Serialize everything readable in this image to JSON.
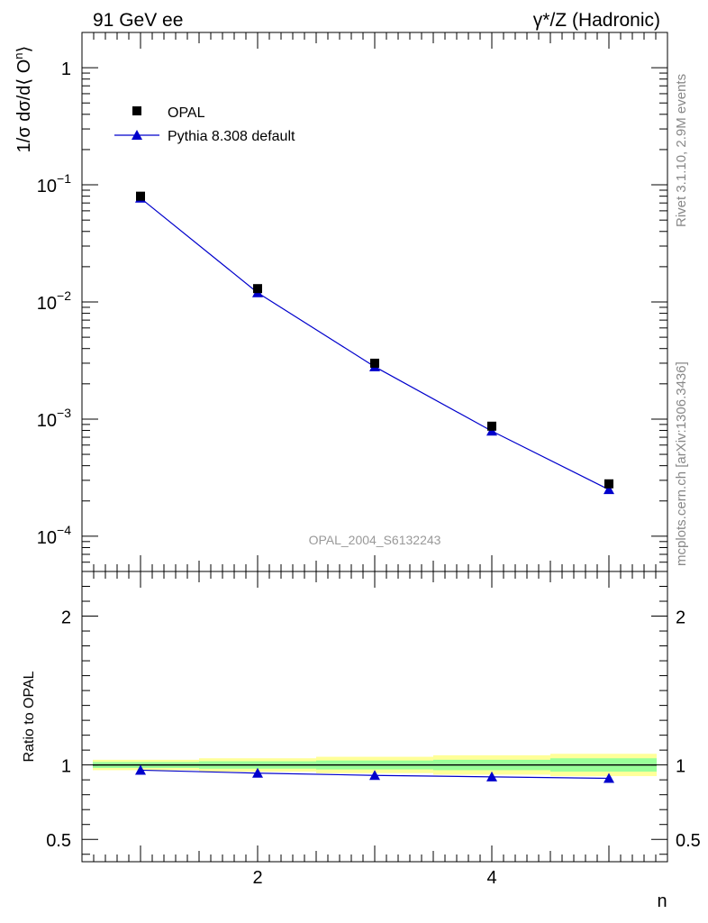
{
  "header": {
    "left": "91 GeV ee",
    "right": "γ*/Z (Hadronic)"
  },
  "side": {
    "rivet": "Rivet 3.1.10,  2.9M events",
    "mcplots": "mcplots.cern.ch [arXiv:1306.3436]"
  },
  "watermark": "OPAL_2004_S6132243",
  "colors": {
    "data": "#000000",
    "mc": "#0000cc",
    "band_inner": "#99ff99",
    "band_outer": "#ffff99"
  },
  "chart_data": [
    {
      "type": "scatter",
      "panel": "main",
      "ylabel": "1/σ dσ/d⟨ Oⁿ⟩",
      "yscale": "log",
      "ylim": [
        5e-05,
        2
      ],
      "xlim": [
        0.5,
        5.5
      ],
      "yticks": [
        {
          "value": 1,
          "base": "1",
          "exp": ""
        },
        {
          "value": 0.1,
          "base": "10",
          "exp": "−1"
        },
        {
          "value": 0.01,
          "base": "10",
          "exp": "−2"
        },
        {
          "value": 0.001,
          "base": "10",
          "exp": "−3"
        },
        {
          "value": 0.0001,
          "base": "10",
          "exp": "−4"
        }
      ],
      "legend": [
        {
          "name": "OPAL",
          "marker": "square"
        },
        {
          "name": "Pythia 8.308 default",
          "marker": "triangle"
        }
      ],
      "series": [
        {
          "name": "OPAL",
          "x": [
            1,
            2,
            3,
            4,
            5
          ],
          "values": [
            0.08,
            0.013,
            0.003,
            0.00087,
            0.00028
          ]
        },
        {
          "name": "Pythia 8.308 default",
          "x": [
            1,
            2,
            3,
            4,
            5
          ],
          "values": [
            0.077,
            0.012,
            0.0028,
            0.00079,
            0.00025
          ]
        }
      ]
    },
    {
      "type": "line",
      "panel": "ratio",
      "ylabel": "Ratio to OPAL",
      "xlabel": "n",
      "ylim": [
        0.35,
        2.3
      ],
      "xlim": [
        0.5,
        5.5
      ],
      "xticks": [
        2,
        4
      ],
      "yticks": [
        {
          "value": 2,
          "label": "2"
        },
        {
          "value": 1,
          "label": "1"
        },
        {
          "value": 0.5,
          "label": "0.5"
        }
      ],
      "bands": [
        {
          "x": [
            0.5,
            1.5
          ],
          "inner": 0.02,
          "outer": 0.035
        },
        {
          "x": [
            1.5,
            2.5
          ],
          "inner": 0.025,
          "outer": 0.045
        },
        {
          "x": [
            2.5,
            3.5
          ],
          "inner": 0.03,
          "outer": 0.055
        },
        {
          "x": [
            3.5,
            4.5
          ],
          "inner": 0.035,
          "outer": 0.065
        },
        {
          "x": [
            4.5,
            5.5
          ],
          "inner": 0.045,
          "outer": 0.075
        }
      ],
      "series": [
        {
          "name": "Pythia 8.308 default",
          "x": [
            1,
            2,
            3,
            4,
            5
          ],
          "values": [
            0.965,
            0.945,
            0.93,
            0.92,
            0.91
          ]
        }
      ]
    }
  ]
}
